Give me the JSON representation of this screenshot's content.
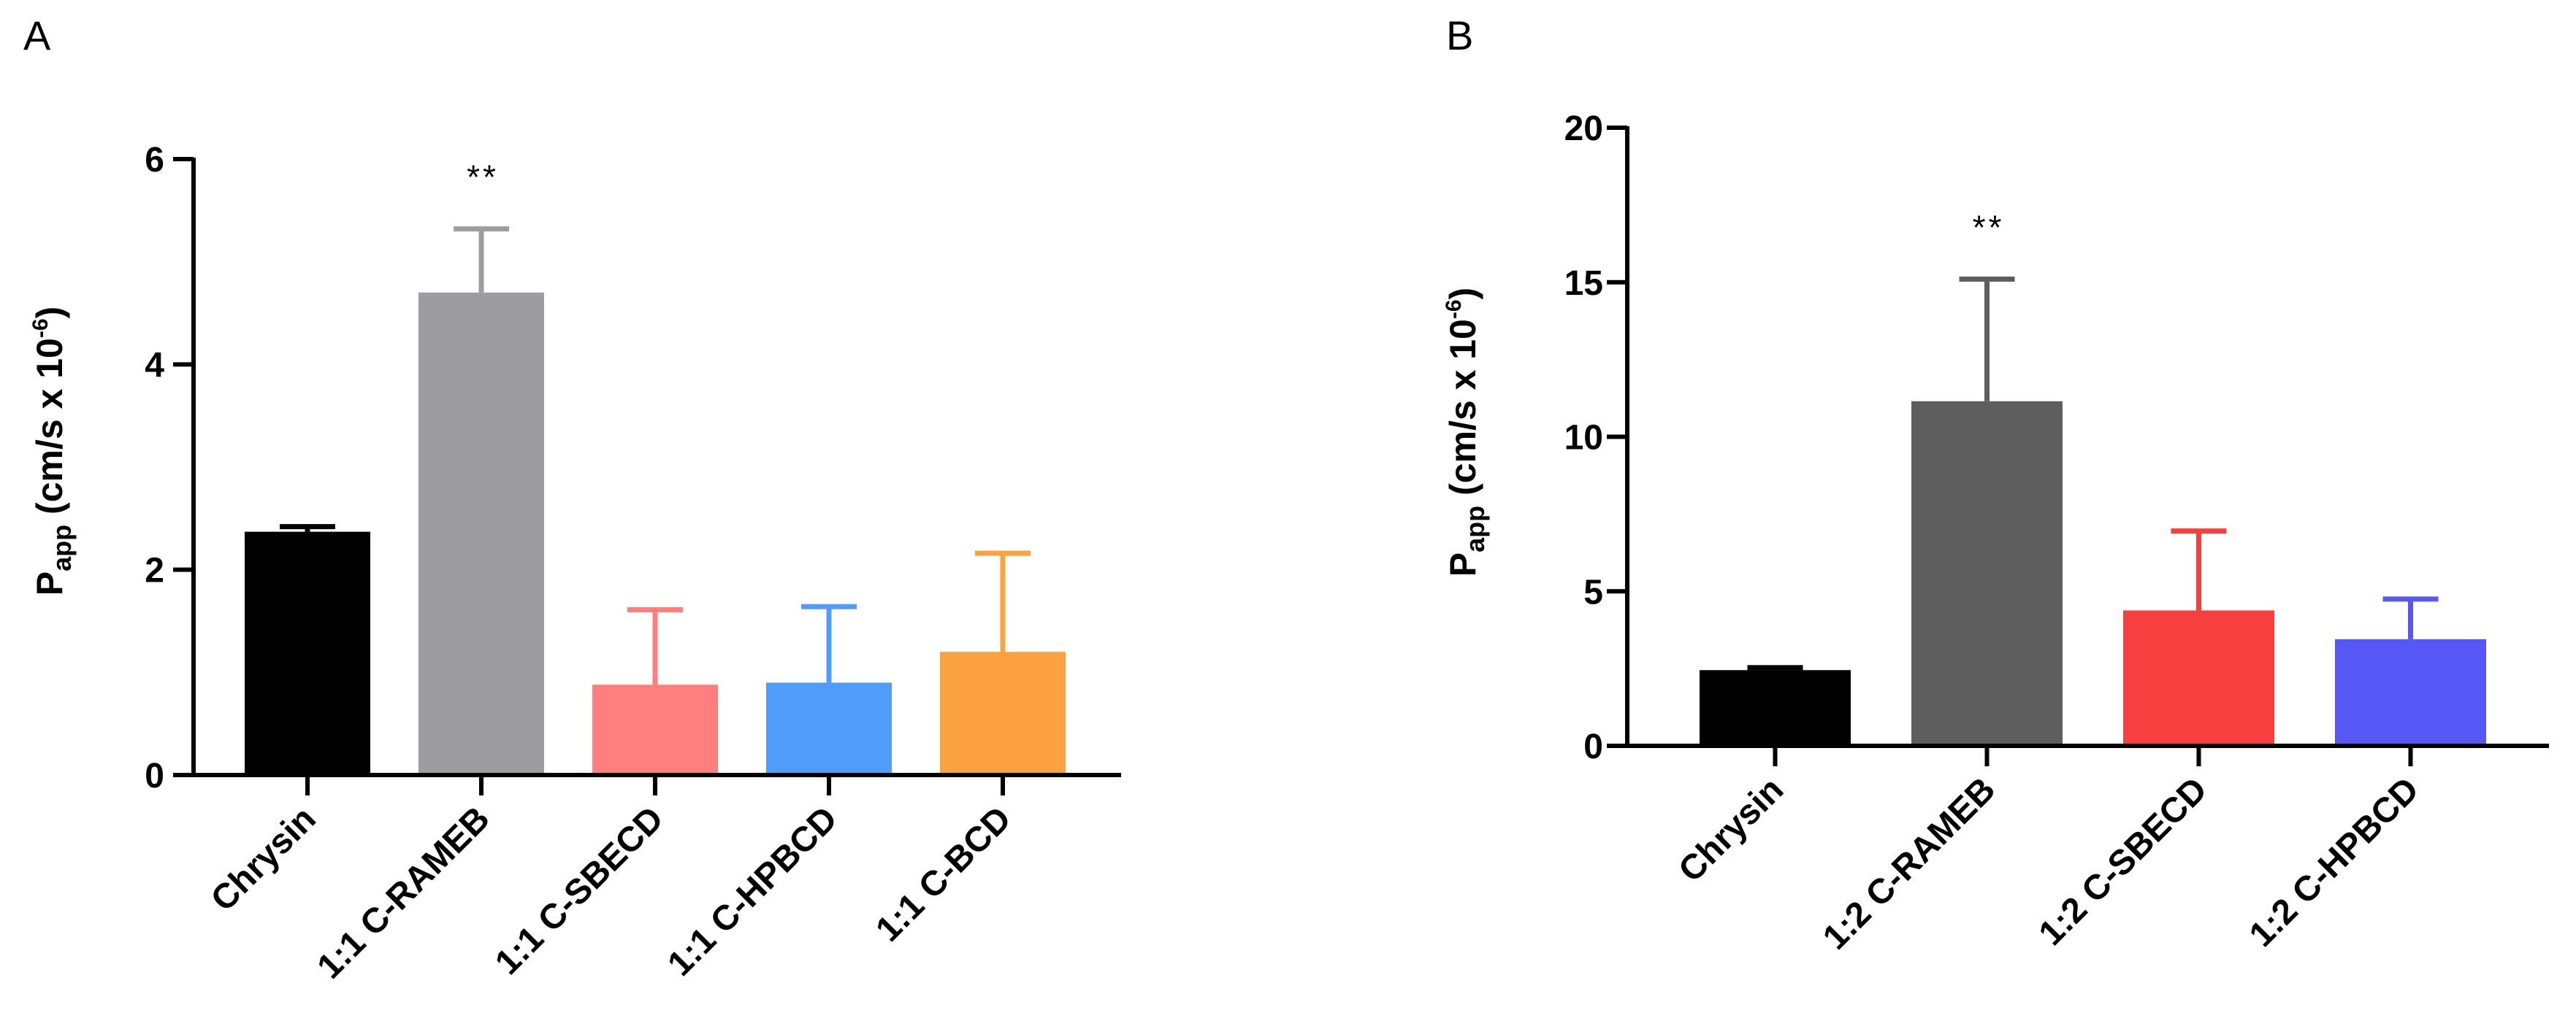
{
  "chart_data": [
    {
      "panel_label": "A",
      "type": "bar",
      "title": "",
      "ylabel": {
        "main": "P",
        "sub": "app",
        "rest": " (cm/s x 10",
        "sup": "-6",
        "close": ")"
      },
      "xlabel": "",
      "ylim": [
        0,
        6
      ],
      "yticks": [
        0,
        2,
        4,
        6
      ],
      "grid": false,
      "categories": [
        "Chrysin",
        "1:1 C-RAMEB",
        "1:1 C-SBECD",
        "1:1 C-HPBCD",
        "1:1 C-BCD"
      ],
      "values": [
        2.37,
        4.7,
        0.88,
        0.9,
        1.2
      ],
      "errors": [
        0.05,
        0.62,
        0.73,
        0.74,
        0.96
      ],
      "colors": [
        "#000000",
        "#9d9ca1",
        "#ff7f7f",
        "#4f9cf9",
        "#fca13f"
      ],
      "annotations": [
        {
          "category": "1:1 C-RAMEB",
          "text": "**"
        }
      ]
    },
    {
      "panel_label": "B",
      "type": "bar",
      "title": "",
      "ylabel": {
        "main": "P",
        "sub": "app",
        "rest": " (cm/s x 10",
        "sup": "-6",
        "close": ")"
      },
      "xlabel": "",
      "ylim": [
        0,
        20
      ],
      "yticks": [
        0,
        5,
        10,
        15,
        20
      ],
      "grid": false,
      "categories": [
        "Chrysin",
        "1:2 C-RAMEB",
        "1:2 C-SBECD",
        "1:2 C-HPBCD"
      ],
      "values": [
        2.45,
        11.15,
        4.38,
        3.45
      ],
      "errors": [
        0.08,
        3.95,
        2.57,
        1.3
      ],
      "colors": [
        "#000000",
        "#5e5e5e",
        "#f63f3f",
        "#5757f6"
      ],
      "annotations": [
        {
          "category": "1:2 C-RAMEB",
          "text": "**"
        }
      ]
    }
  ]
}
